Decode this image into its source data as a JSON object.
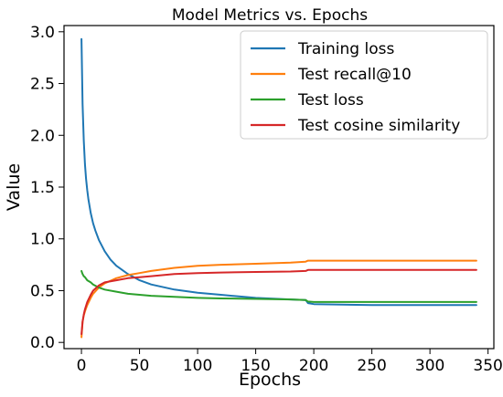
{
  "chart_data": {
    "type": "line",
    "title": "Model Metrics vs. Epochs",
    "xlabel": "Epochs",
    "ylabel": "Value",
    "xlim": [
      -15,
      355
    ],
    "ylim": [
      -0.06,
      3.06
    ],
    "xticks": [
      0,
      50,
      100,
      150,
      200,
      250,
      300,
      350
    ],
    "xtick_labels": [
      "0",
      "50",
      "100",
      "150",
      "200",
      "250",
      "300",
      "350"
    ],
    "yticks": [
      0.0,
      0.5,
      1.0,
      1.5,
      2.0,
      2.5,
      3.0
    ],
    "ytick_labels": [
      "0.0",
      "0.5",
      "1.0",
      "1.5",
      "2.0",
      "2.5",
      "3.0"
    ],
    "grid": false,
    "legend_position": "top-right",
    "series": [
      {
        "name": "Training loss",
        "color": "#1f77b4",
        "x": [
          0,
          1,
          2,
          3,
          4,
          5,
          6,
          8,
          10,
          12,
          15,
          20,
          25,
          30,
          40,
          50,
          60,
          80,
          100,
          120,
          150,
          180,
          193,
          195,
          200,
          250,
          300,
          340
        ],
        "y": [
          2.93,
          2.3,
          1.95,
          1.72,
          1.58,
          1.47,
          1.38,
          1.25,
          1.15,
          1.08,
          0.99,
          0.88,
          0.8,
          0.74,
          0.66,
          0.6,
          0.56,
          0.51,
          0.48,
          0.46,
          0.43,
          0.415,
          0.41,
          0.38,
          0.37,
          0.36,
          0.36,
          0.36
        ]
      },
      {
        "name": "Test recall@10",
        "color": "#ff7f0e",
        "x": [
          0,
          1,
          2,
          3,
          5,
          8,
          10,
          15,
          20,
          30,
          40,
          50,
          60,
          80,
          100,
          120,
          150,
          180,
          193,
          195,
          200,
          250,
          300,
          340
        ],
        "y": [
          0.05,
          0.2,
          0.26,
          0.3,
          0.36,
          0.43,
          0.47,
          0.53,
          0.57,
          0.62,
          0.65,
          0.67,
          0.69,
          0.72,
          0.74,
          0.75,
          0.76,
          0.77,
          0.78,
          0.79,
          0.79,
          0.79,
          0.79,
          0.79
        ]
      },
      {
        "name": "Test loss",
        "color": "#2ca02c",
        "x": [
          0,
          1,
          2,
          3,
          5,
          8,
          10,
          15,
          20,
          30,
          40,
          50,
          60,
          80,
          100,
          120,
          150,
          180,
          193,
          195,
          200,
          250,
          300,
          340
        ],
        "y": [
          0.69,
          0.66,
          0.64,
          0.63,
          0.6,
          0.58,
          0.56,
          0.53,
          0.51,
          0.49,
          0.47,
          0.46,
          0.45,
          0.44,
          0.43,
          0.425,
          0.42,
          0.415,
          0.41,
          0.395,
          0.39,
          0.39,
          0.39,
          0.39
        ]
      },
      {
        "name": "Test cosine similarity",
        "color": "#d62728",
        "x": [
          0,
          1,
          2,
          3,
          5,
          8,
          10,
          15,
          20,
          30,
          40,
          50,
          60,
          80,
          100,
          120,
          150,
          180,
          193,
          195,
          200,
          250,
          300,
          340
        ],
        "y": [
          0.08,
          0.2,
          0.27,
          0.32,
          0.39,
          0.46,
          0.5,
          0.55,
          0.58,
          0.6,
          0.62,
          0.63,
          0.64,
          0.66,
          0.67,
          0.675,
          0.68,
          0.685,
          0.69,
          0.7,
          0.7,
          0.7,
          0.7,
          0.7
        ]
      }
    ]
  }
}
